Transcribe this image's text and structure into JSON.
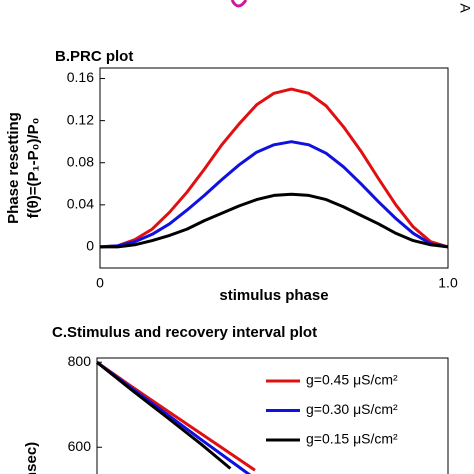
{
  "panel_a": {
    "label": "A"
  },
  "chart_data": [
    {
      "type": "line",
      "title": "B.PRC plot",
      "xlabel": "stimulus phase",
      "ylabel": [
        "Phase resetting",
        "f(θ)=(P₁-P₀)/P₀"
      ],
      "x": [
        0,
        0.05,
        0.1,
        0.15,
        0.2,
        0.25,
        0.3,
        0.35,
        0.4,
        0.45,
        0.5,
        0.55,
        0.6,
        0.65,
        0.7,
        0.75,
        0.8,
        0.85,
        0.9,
        0.95,
        1.0
      ],
      "series": [
        {
          "color": "#e01010",
          "values": [
            0,
            0.001,
            0.007,
            0.017,
            0.033,
            0.052,
            0.074,
            0.097,
            0.117,
            0.135,
            0.146,
            0.15,
            0.146,
            0.134,
            0.114,
            0.091,
            0.065,
            0.04,
            0.019,
            0.005,
            0
          ]
        },
        {
          "color": "#1010e0",
          "values": [
            0,
            0.001,
            0.005,
            0.012,
            0.022,
            0.035,
            0.049,
            0.064,
            0.078,
            0.09,
            0.097,
            0.1,
            0.097,
            0.089,
            0.076,
            0.06,
            0.043,
            0.027,
            0.013,
            0.003,
            0
          ]
        },
        {
          "color": "#000000",
          "values": [
            0,
            0,
            0.002,
            0.006,
            0.011,
            0.017,
            0.025,
            0.032,
            0.039,
            0.045,
            0.049,
            0.05,
            0.049,
            0.045,
            0.038,
            0.03,
            0.022,
            0.013,
            0.006,
            0.002,
            0
          ]
        }
      ],
      "xlim": [
        0,
        1
      ],
      "xticks": [
        0,
        {
          "value": 1,
          "label": "1.0"
        }
      ],
      "ylim": [
        -0.02,
        0.17
      ],
      "yticks": [
        0,
        0.04,
        0.08,
        0.12,
        0.16
      ]
    },
    {
      "type": "line",
      "title": "C.Stimulus and recovery interval plot",
      "ylabel": [
        "(msec)"
      ],
      "legend": "upper right",
      "series": [
        {
          "name": "g=0.45 μS/cm²",
          "color": "#e01010",
          "x": [
            0,
            0.1,
            0.2,
            0.3,
            0.4,
            0.45
          ],
          "values": [
            800,
            742,
            686,
            630,
            574,
            546
          ]
        },
        {
          "name": "g=0.30 μS/cm²",
          "color": "#1010e0",
          "x": [
            0,
            0.1,
            0.2,
            0.3,
            0.4,
            0.45
          ],
          "values": [
            800,
            738,
            677,
            616,
            556,
            526
          ]
        },
        {
          "name": "g=0.15 μS/cm²",
          "color": "#000000",
          "x": [
            0,
            0.1,
            0.2,
            0.3,
            0.38
          ],
          "values": [
            800,
            734,
            670,
            605,
            550
          ]
        }
      ],
      "xlim": [
        0,
        1
      ],
      "ylim": [
        530,
        810
      ],
      "yticks": [
        600,
        800
      ]
    }
  ]
}
